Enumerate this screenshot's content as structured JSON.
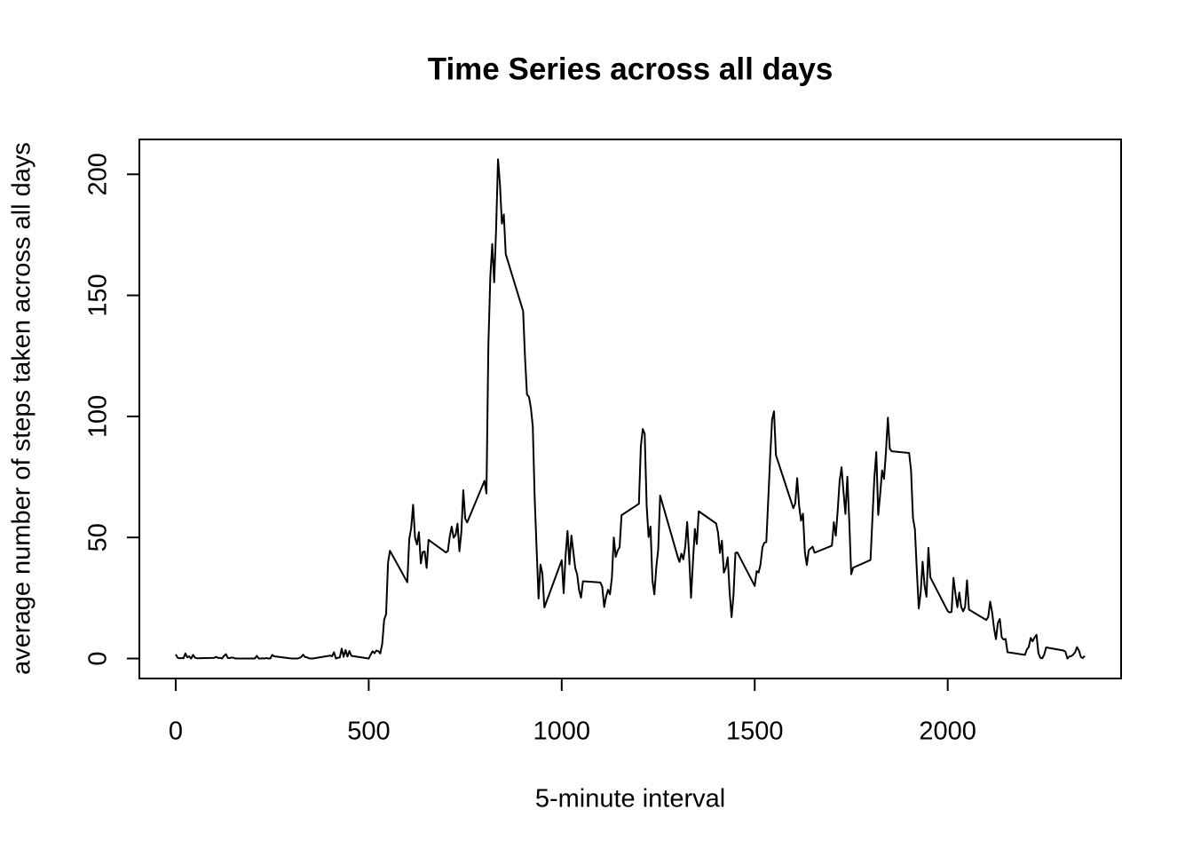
{
  "chart_data": {
    "type": "line",
    "title": "Time Series across all days",
    "xlabel": "5-minute interval",
    "ylabel": "average number of steps taken across all days",
    "color": "#000000",
    "xlim": [
      -94.2,
      2449.2
    ],
    "ylim": [
      -8.25,
      214.4
    ],
    "xticks": [
      0,
      500,
      1000,
      1500,
      2000
    ],
    "yticks": [
      0,
      50,
      100,
      150,
      200
    ],
    "x": [
      0,
      5,
      10,
      15,
      20,
      25,
      30,
      35,
      40,
      45,
      50,
      55,
      100,
      105,
      110,
      115,
      120,
      125,
      130,
      135,
      140,
      145,
      150,
      155,
      200,
      205,
      210,
      215,
      220,
      225,
      230,
      235,
      240,
      245,
      250,
      255,
      300,
      305,
      310,
      315,
      320,
      325,
      330,
      335,
      340,
      345,
      350,
      355,
      400,
      405,
      410,
      415,
      420,
      425,
      430,
      435,
      440,
      445,
      450,
      455,
      500,
      505,
      510,
      515,
      520,
      525,
      530,
      535,
      540,
      545,
      550,
      555,
      600,
      605,
      610,
      615,
      620,
      625,
      630,
      635,
      640,
      645,
      650,
      655,
      700,
      705,
      710,
      715,
      720,
      725,
      730,
      735,
      740,
      745,
      750,
      755,
      800,
      805,
      810,
      815,
      820,
      825,
      830,
      835,
      840,
      845,
      850,
      855,
      900,
      905,
      910,
      915,
      920,
      925,
      930,
      935,
      940,
      945,
      950,
      955,
      1000,
      1005,
      1010,
      1015,
      1020,
      1025,
      1030,
      1035,
      1040,
      1045,
      1050,
      1055,
      1100,
      1105,
      1110,
      1115,
      1120,
      1125,
      1130,
      1135,
      1140,
      1145,
      1150,
      1155,
      1200,
      1205,
      1210,
      1215,
      1220,
      1225,
      1230,
      1235,
      1240,
      1245,
      1250,
      1255,
      1300,
      1305,
      1310,
      1315,
      1320,
      1325,
      1330,
      1335,
      1340,
      1345,
      1350,
      1355,
      1400,
      1405,
      1410,
      1415,
      1420,
      1425,
      1430,
      1435,
      1440,
      1445,
      1450,
      1455,
      1500,
      1505,
      1510,
      1515,
      1520,
      1525,
      1530,
      1535,
      1540,
      1545,
      1550,
      1555,
      1600,
      1605,
      1610,
      1615,
      1620,
      1625,
      1630,
      1635,
      1640,
      1645,
      1650,
      1655,
      1700,
      1705,
      1710,
      1715,
      1720,
      1725,
      1730,
      1735,
      1740,
      1745,
      1750,
      1755,
      1800,
      1805,
      1810,
      1815,
      1820,
      1825,
      1830,
      1835,
      1840,
      1845,
      1850,
      1855,
      1900,
      1905,
      1910,
      1915,
      1920,
      1925,
      1930,
      1935,
      1940,
      1945,
      1950,
      1955,
      2000,
      2005,
      2010,
      2015,
      2020,
      2025,
      2030,
      2035,
      2040,
      2045,
      2050,
      2055,
      2100,
      2105,
      2110,
      2115,
      2120,
      2125,
      2130,
      2135,
      2140,
      2145,
      2150,
      2155,
      2200,
      2205,
      2210,
      2215,
      2220,
      2225,
      2230,
      2235,
      2240,
      2245,
      2250,
      2255,
      2300,
      2305,
      2310,
      2315,
      2320,
      2325,
      2330,
      2335,
      2340,
      2345,
      2350,
      2355
    ],
    "values": [
      1.7,
      0.3,
      0.1,
      0.2,
      0.1,
      2.1,
      0.5,
      0.9,
      0,
      1.5,
      0.3,
      0.1,
      0.3,
      0.7,
      0.2,
      0.3,
      0,
      1.1,
      1.8,
      0.2,
      0.2,
      0.4,
      0.3,
      0,
      0,
      0,
      1.1,
      0,
      0,
      0.1,
      0,
      0.2,
      0,
      0,
      1.5,
      0.9,
      0,
      0,
      0,
      0,
      0.2,
      0.6,
      1.6,
      0.6,
      0.5,
      0.1,
      0,
      0,
      1.2,
      0.9,
      2.6,
      0,
      0.3,
      0.4,
      4.1,
      0.7,
      3.5,
      0.8,
      3.1,
      1.1,
      0,
      1.6,
      3.0,
      2.2,
      3.3,
      3.0,
      2.1,
      6.1,
      16.0,
      18.3,
      39.5,
      44.5,
      31.5,
      49.3,
      53.8,
      63.5,
      50.0,
      47.1,
      52.2,
      39.3,
      44.0,
      44.2,
      37.4,
      49.0,
      43.8,
      44.4,
      50.5,
      54.5,
      49.9,
      51.0,
      55.7,
      44.3,
      52.3,
      69.5,
      57.8,
      56.2,
      73.4,
      68.2,
      129.4,
      157.5,
      171.2,
      155.4,
      177.3,
      206.2,
      195.9,
      179.6,
      183.4,
      167.0,
      143.5,
      124.0,
      109.1,
      108.1,
      103.7,
      95.97,
      66.2,
      45.2,
      24.8,
      38.8,
      34.98,
      21.1,
      40.6,
      27.0,
      42.4,
      52.7,
      38.9,
      50.8,
      44.3,
      37.4,
      34.7,
      28.3,
      25.1,
      31.9,
      31.4,
      29.7,
      21.3,
      25.5,
      28.4,
      26.5,
      33.4,
      50.0,
      42.0,
      44.6,
      46.0,
      59.2,
      63.9,
      87.7,
      94.8,
      92.8,
      63.4,
      50.2,
      54.5,
      32.4,
      26.5,
      37.7,
      45.1,
      67.3,
      42.3,
      39.9,
      43.3,
      40.98,
      46.2,
      56.4,
      42.8,
      25.1,
      40.0,
      53.5,
      47.3,
      60.8,
      55.8,
      51.96,
      43.6,
      48.7,
      35.5,
      37.5,
      41.8,
      27.5,
      17.1,
      26.1,
      43.6,
      43.8,
      30.0,
      36.1,
      35.5,
      38.8,
      45.96,
      47.8,
      48.1,
      65.3,
      82.9,
      98.7,
      102.1,
      83.96,
      62.1,
      64.1,
      74.5,
      63.2,
      56.9,
      59.8,
      43.9,
      38.6,
      44.7,
      45.5,
      46.2,
      43.7,
      46.6,
      56.3,
      50.7,
      61.2,
      73.4,
      79.0,
      68.9,
      59.7,
      75.1,
      56.5,
      34.8,
      37.5,
      40.7,
      58.0,
      74.7,
      85.3,
      59.3,
      67.8,
      77.7,
      74.2,
      85.3,
      99.5,
      86.6,
      85.6,
      84.9,
      77.8,
      58.0,
      53.4,
      36.3,
      20.7,
      27.4,
      40.0,
      30.2,
      25.5,
      45.7,
      33.5,
      19.6,
      19.0,
      19.3,
      33.3,
      26.8,
      21.2,
      27.3,
      21.3,
      19.5,
      21.3,
      32.3,
      20.2,
      15.9,
      17.2,
      23.5,
      19.2,
      12.5,
      8.0,
      14.7,
      16.3,
      8.7,
      7.8,
      8.1,
      2.6,
      1.5,
      3.7,
      4.8,
      8.5,
      7.1,
      8.7,
      9.8,
      2.2,
      0.3,
      0.1,
      1.6,
      4.6,
      3.3,
      2.8,
      0,
      0.8,
      1.0,
      1.6,
      2.6,
      4.7,
      3.3,
      0.6,
      0.2,
      1.1
    ]
  }
}
